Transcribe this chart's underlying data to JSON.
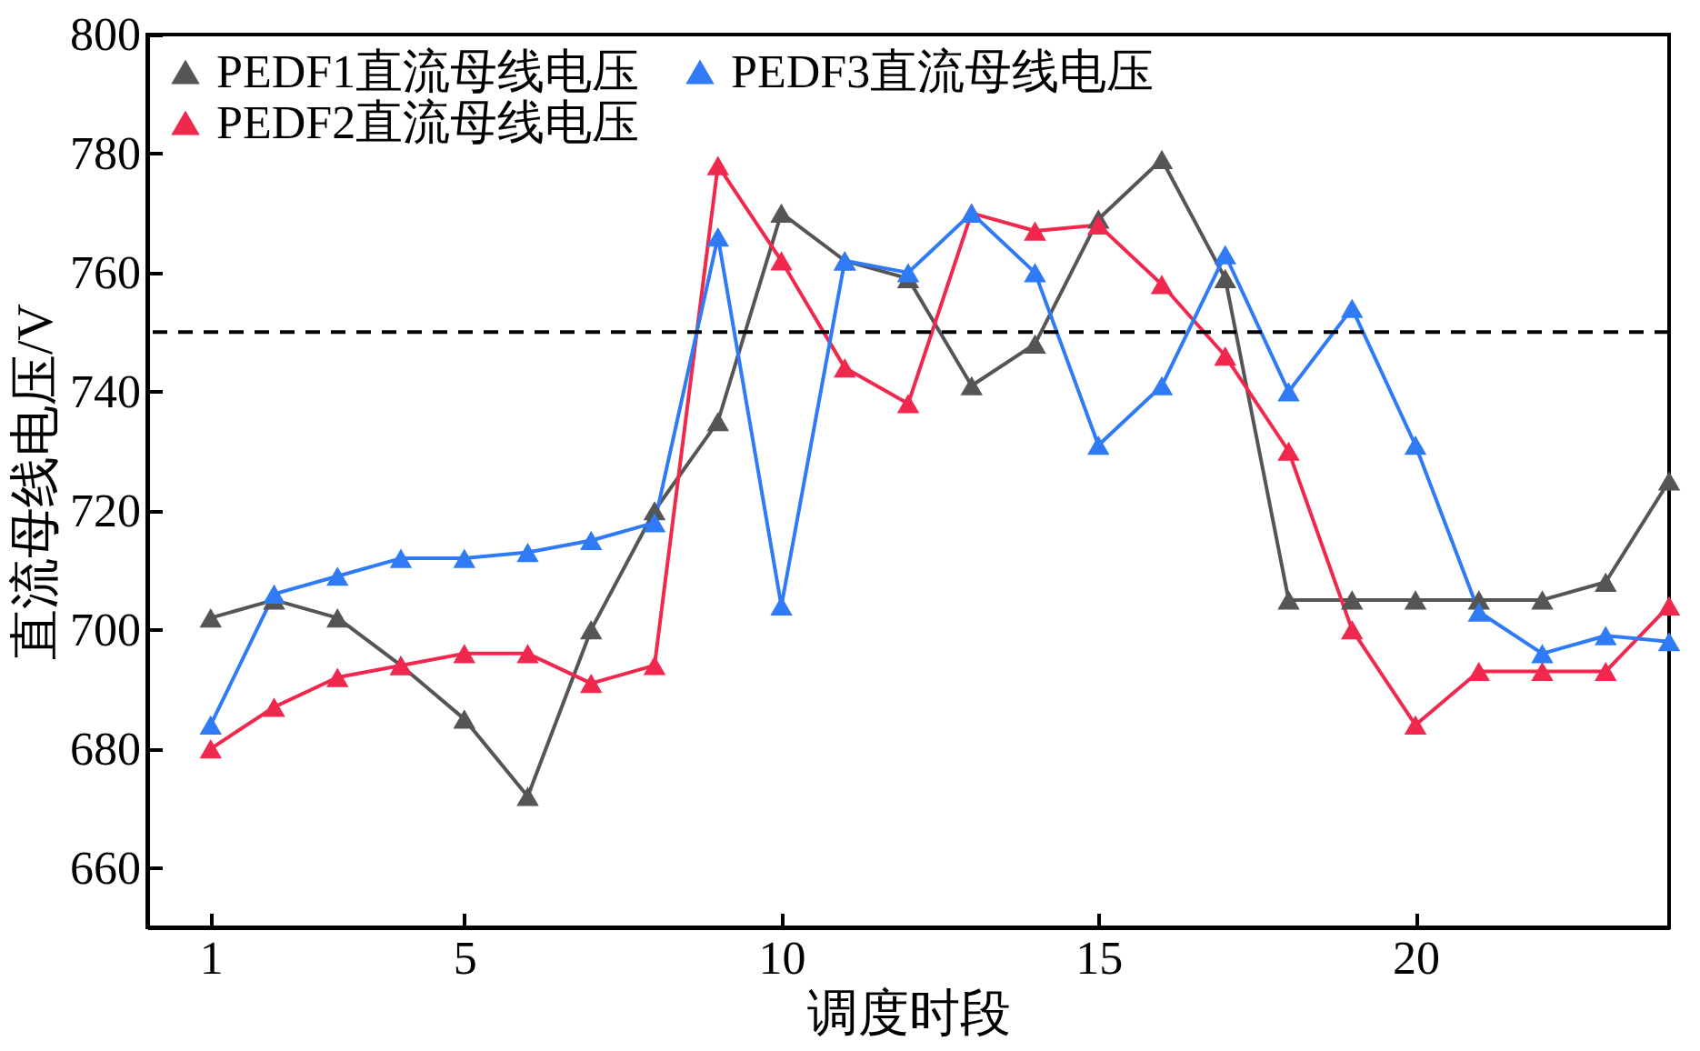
{
  "chart_data": {
    "type": "line",
    "xlabel": "调度时段",
    "ylabel": "直流母线电压/V",
    "x": [
      1,
      2,
      3,
      4,
      5,
      6,
      7,
      8,
      9,
      10,
      11,
      12,
      13,
      14,
      15,
      16,
      17,
      18,
      19,
      20,
      21,
      22,
      23,
      24
    ],
    "series": [
      {
        "name": "PEDF1直流母线电压",
        "color": "#555555",
        "values": [
          702,
          705,
          702,
          694,
          685,
          672,
          700,
          720,
          735,
          770,
          762,
          759,
          741,
          748,
          769,
          779,
          759,
          705,
          705,
          705,
          705,
          705,
          708,
          725
        ]
      },
      {
        "name": "PEDF2直流母线电压",
        "color": "#f0284e",
        "values": [
          680,
          687,
          692,
          694,
          696,
          696,
          691,
          694,
          778,
          762,
          744,
          738,
          770,
          767,
          768,
          758,
          746,
          730,
          700,
          684,
          693,
          693,
          693,
          704
        ]
      },
      {
        "name": "PEDF3直流母线电压",
        "color": "#2f7bf5",
        "values": [
          684,
          706,
          709,
          712,
          712,
          713,
          715,
          718,
          766,
          704,
          762,
          760,
          770,
          760,
          731,
          741,
          763,
          740,
          754,
          731,
          703,
          696,
          699,
          698
        ]
      }
    ],
    "xlim": [
      0,
      24
    ],
    "xticks": [
      1,
      5,
      10,
      15,
      20
    ],
    "ylim": [
      650,
      800
    ],
    "yticks": [
      660,
      680,
      700,
      720,
      740,
      760,
      780,
      800
    ],
    "ref_lines": [
      {
        "axis": "y",
        "value": 750,
        "line_style": "dashed",
        "color": "#000000"
      }
    ],
    "grid": false,
    "legend": "top left",
    "marker": "triangle",
    "line_style": "solid"
  }
}
